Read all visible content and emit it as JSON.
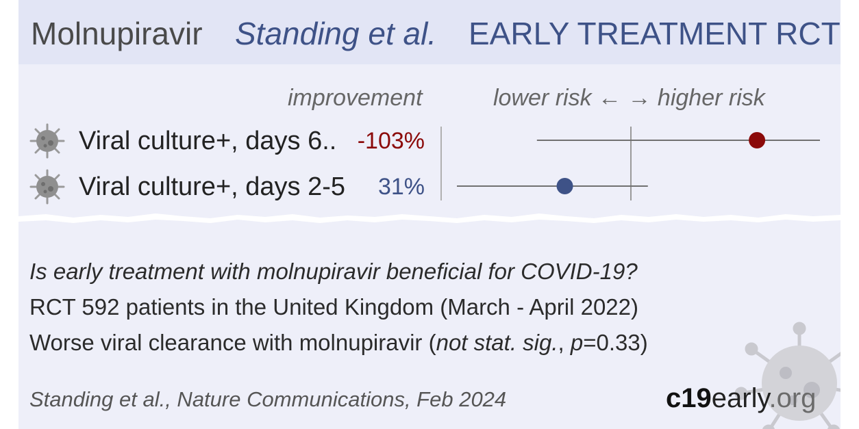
{
  "header": {
    "drug": "Molnupiravir",
    "authors": "Standing et al.",
    "trial_type": "EARLY TREATMENT RCT"
  },
  "columns": {
    "improvement": "improvement",
    "risk_scale": "lower risk ← → higher risk"
  },
  "chart_data": {
    "type": "forest",
    "rows": [
      {
        "label": "Viral culture+, days 6..",
        "improvement": "-103%",
        "effect": 2.03,
        "ci": [
          0.59,
          null
        ],
        "color": "#8b0a0a"
      },
      {
        "label": "Viral culture+, days 2-5",
        "improvement": "31%",
        "effect": 0.69,
        "ci": [
          0.36,
          1.1
        ],
        "color": "#3e5287"
      }
    ],
    "x_scale": "log",
    "reference": 1.0
  },
  "summary": {
    "question": "Is early treatment with molnupiravir beneficial for COVID-19?",
    "design_line": "RCT 592 patients in the United Kingdom (March - April 2022)",
    "result_prefix": "Worse viral clearance with molnupiravir (",
    "result_italic": "not stat. sig.",
    "result_suffix": ", ",
    "result_p_italic": "p",
    "result_p_value": "=0.33)"
  },
  "citation": "Standing et al., Nature Communications, Feb 2024",
  "logo": {
    "part1": "c19",
    "part2": "early",
    "part3": ".org"
  },
  "icons": [
    "virus-icon",
    "virus-watermark-icon"
  ]
}
